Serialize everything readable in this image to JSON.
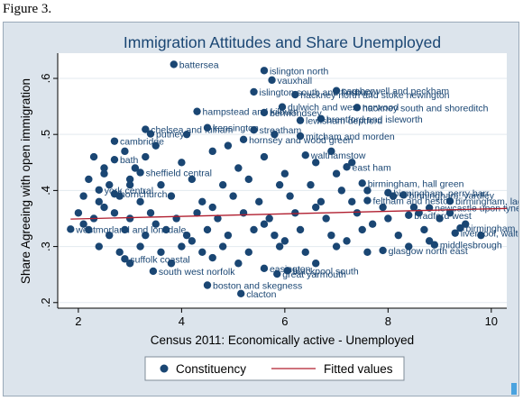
{
  "caption": "Figure 3.",
  "colors": {
    "marker": "#1a4673",
    "fit": "#b01e2f",
    "panel": "#dce4ec",
    "plot": "#ffffff"
  },
  "chart_data": {
    "type": "scatter",
    "title": "Immigration Attitudes and Share Unemployed",
    "xlabel": "Census 2011: Economically active - Unemployed",
    "ylabel": "Share Agreeing with open immigration",
    "xlim": [
      1.6,
      10.3
    ],
    "ylim": [
      0.19,
      0.645
    ],
    "xticks": [
      "2",
      "4",
      "6",
      "8",
      "10"
    ],
    "yticks": [
      ".2",
      ".3",
      ".4",
      ".5",
      ".6"
    ],
    "grid": true,
    "legend": {
      "position": "bottom",
      "entries": [
        "Constituency",
        "Fitted values"
      ]
    },
    "fitted_line": {
      "x": [
        1.85,
        10.3
      ],
      "y": [
        0.349,
        0.368
      ]
    },
    "labeled_points": [
      {
        "label": "battersea",
        "x": 3.85,
        "y": 0.625
      },
      {
        "label": "islington north",
        "x": 5.6,
        "y": 0.614
      },
      {
        "label": "vauxhall",
        "x": 5.75,
        "y": 0.597
      },
      {
        "label": "islington south and finsbury",
        "x": 5.4,
        "y": 0.576
      },
      {
        "label": "hackney north and stoke newington",
        "x": 6.2,
        "y": 0.571
      },
      {
        "label": "camberwell and peckham",
        "x": 7.0,
        "y": 0.578
      },
      {
        "label": "dulwich and west norwood",
        "x": 5.95,
        "y": 0.549
      },
      {
        "label": "hackney south and shoreditch",
        "x": 7.4,
        "y": 0.548
      },
      {
        "label": "hampstead and kilburn",
        "x": 4.3,
        "y": 0.541
      },
      {
        "label": "bermondsey",
        "x": 5.6,
        "y": 0.539
      },
      {
        "label": "lewisham deptford",
        "x": 6.3,
        "y": 0.525
      },
      {
        "label": "brentford and isleworth",
        "x": 6.7,
        "y": 0.528
      },
      {
        "label": "chelsea and fulham",
        "x": 3.3,
        "y": 0.509
      },
      {
        "label": "kensington",
        "x": 4.5,
        "y": 0.512
      },
      {
        "label": "streatham",
        "x": 5.4,
        "y": 0.508
      },
      {
        "label": "putney",
        "x": 3.4,
        "y": 0.501
      },
      {
        "label": "hornsey and wood green",
        "x": 5.2,
        "y": 0.491
      },
      {
        "label": "mitcham and morden",
        "x": 6.3,
        "y": 0.497
      },
      {
        "label": "cambridge",
        "x": 2.7,
        "y": 0.488
      },
      {
        "label": "walthamstow",
        "x": 6.4,
        "y": 0.463
      },
      {
        "label": "bath",
        "x": 2.7,
        "y": 0.455
      },
      {
        "label": "east ham",
        "x": 7.2,
        "y": 0.442
      },
      {
        "label": "sheffield central",
        "x": 3.2,
        "y": 0.432
      },
      {
        "label": "birmingham, hall green",
        "x": 7.5,
        "y": 0.413
      },
      {
        "label": "york central",
        "x": 2.4,
        "y": 0.401
      },
      {
        "label": "hornchurch",
        "x": 2.7,
        "y": 0.394
      },
      {
        "label": "birmingham, perry barr",
        "x": 8.0,
        "y": 0.396
      },
      {
        "label": "birmingham, yardley",
        "x": 8.3,
        "y": 0.392
      },
      {
        "label": "birmingham, ladywood",
        "x": 9.2,
        "y": 0.381
      },
      {
        "label": "feltham and heston",
        "x": 7.6,
        "y": 0.382
      },
      {
        "label": "newcastle upon tyne north east",
        "x": 8.8,
        "y": 0.369
      },
      {
        "label": "bradford west",
        "x": 8.4,
        "y": 0.356
      },
      {
        "label": "westmorland and lonsdale",
        "x": 1.85,
        "y": 0.331
      },
      {
        "label": "birmingham, hodge hill",
        "x": 9.4,
        "y": 0.333
      },
      {
        "label": "liverpool, walton",
        "x": 9.3,
        "y": 0.324
      },
      {
        "label": "middlesbrough",
        "x": 8.9,
        "y": 0.303
      },
      {
        "label": "glasgow north east",
        "x": 7.9,
        "y": 0.293
      },
      {
        "label": "suffolk coastal",
        "x": 2.9,
        "y": 0.278
      },
      {
        "label": "blackpool south",
        "x": 6.05,
        "y": 0.257
      },
      {
        "label": "easington",
        "x": 5.6,
        "y": 0.261
      },
      {
        "label": "great yarmouth",
        "x": 5.85,
        "y": 0.251
      },
      {
        "label": "south west norfolk",
        "x": 3.45,
        "y": 0.256
      },
      {
        "label": "boston and skegness",
        "x": 4.5,
        "y": 0.231
      },
      {
        "label": "clacton",
        "x": 5.15,
        "y": 0.216
      }
    ],
    "cloud_points": [
      {
        "x": 2.3,
        "y": 0.46
      },
      {
        "x": 2.5,
        "y": 0.43
      },
      {
        "x": 2.9,
        "y": 0.47
      },
      {
        "x": 3.1,
        "y": 0.44
      },
      {
        "x": 3.5,
        "y": 0.48
      },
      {
        "x": 4.0,
        "y": 0.45
      },
      {
        "x": 4.6,
        "y": 0.47
      },
      {
        "x": 5.1,
        "y": 0.44
      },
      {
        "x": 5.6,
        "y": 0.46
      },
      {
        "x": 6.0,
        "y": 0.43
      },
      {
        "x": 6.6,
        "y": 0.45
      },
      {
        "x": 7.0,
        "y": 0.43
      },
      {
        "x": 2.2,
        "y": 0.42
      },
      {
        "x": 2.6,
        "y": 0.41
      },
      {
        "x": 3.0,
        "y": 0.42
      },
      {
        "x": 3.6,
        "y": 0.41
      },
      {
        "x": 4.2,
        "y": 0.42
      },
      {
        "x": 4.8,
        "y": 0.41
      },
      {
        "x": 5.3,
        "y": 0.42
      },
      {
        "x": 5.9,
        "y": 0.41
      },
      {
        "x": 6.5,
        "y": 0.41
      },
      {
        "x": 7.1,
        "y": 0.4
      },
      {
        "x": 7.6,
        "y": 0.4
      },
      {
        "x": 8.1,
        "y": 0.39
      },
      {
        "x": 2.1,
        "y": 0.39
      },
      {
        "x": 2.4,
        "y": 0.38
      },
      {
        "x": 2.8,
        "y": 0.39
      },
      {
        "x": 3.2,
        "y": 0.38
      },
      {
        "x": 3.8,
        "y": 0.39
      },
      {
        "x": 4.4,
        "y": 0.38
      },
      {
        "x": 5.0,
        "y": 0.39
      },
      {
        "x": 5.5,
        "y": 0.38
      },
      {
        "x": 6.1,
        "y": 0.39
      },
      {
        "x": 6.7,
        "y": 0.38
      },
      {
        "x": 7.3,
        "y": 0.38
      },
      {
        "x": 7.9,
        "y": 0.37
      },
      {
        "x": 8.5,
        "y": 0.37
      },
      {
        "x": 2.0,
        "y": 0.36
      },
      {
        "x": 2.3,
        "y": 0.35
      },
      {
        "x": 2.7,
        "y": 0.36
      },
      {
        "x": 3.0,
        "y": 0.35
      },
      {
        "x": 3.4,
        "y": 0.36
      },
      {
        "x": 3.9,
        "y": 0.35
      },
      {
        "x": 4.3,
        "y": 0.36
      },
      {
        "x": 4.7,
        "y": 0.35
      },
      {
        "x": 5.2,
        "y": 0.36
      },
      {
        "x": 5.7,
        "y": 0.35
      },
      {
        "x": 6.2,
        "y": 0.36
      },
      {
        "x": 6.8,
        "y": 0.35
      },
      {
        "x": 7.4,
        "y": 0.36
      },
      {
        "x": 8.0,
        "y": 0.35
      },
      {
        "x": 8.6,
        "y": 0.36
      },
      {
        "x": 9.0,
        "y": 0.35
      },
      {
        "x": 9.5,
        "y": 0.34
      },
      {
        "x": 2.2,
        "y": 0.33
      },
      {
        "x": 2.6,
        "y": 0.32
      },
      {
        "x": 2.9,
        "y": 0.33
      },
      {
        "x": 3.3,
        "y": 0.32
      },
      {
        "x": 3.7,
        "y": 0.33
      },
      {
        "x": 4.1,
        "y": 0.32
      },
      {
        "x": 4.5,
        "y": 0.33
      },
      {
        "x": 4.9,
        "y": 0.32
      },
      {
        "x": 5.4,
        "y": 0.33
      },
      {
        "x": 5.8,
        "y": 0.32
      },
      {
        "x": 6.3,
        "y": 0.33
      },
      {
        "x": 6.9,
        "y": 0.32
      },
      {
        "x": 7.5,
        "y": 0.33
      },
      {
        "x": 8.2,
        "y": 0.32
      },
      {
        "x": 8.8,
        "y": 0.31
      },
      {
        "x": 9.8,
        "y": 0.32
      },
      {
        "x": 2.4,
        "y": 0.3
      },
      {
        "x": 2.8,
        "y": 0.29
      },
      {
        "x": 3.2,
        "y": 0.3
      },
      {
        "x": 3.6,
        "y": 0.29
      },
      {
        "x": 4.0,
        "y": 0.3
      },
      {
        "x": 4.4,
        "y": 0.29
      },
      {
        "x": 4.8,
        "y": 0.3
      },
      {
        "x": 5.3,
        "y": 0.29
      },
      {
        "x": 5.9,
        "y": 0.3
      },
      {
        "x": 6.4,
        "y": 0.29
      },
      {
        "x": 7.0,
        "y": 0.3
      },
      {
        "x": 7.6,
        "y": 0.29
      },
      {
        "x": 8.4,
        "y": 0.3
      },
      {
        "x": 3.0,
        "y": 0.27
      },
      {
        "x": 3.8,
        "y": 0.27
      },
      {
        "x": 4.6,
        "y": 0.28
      },
      {
        "x": 5.1,
        "y": 0.27
      },
      {
        "x": 6.6,
        "y": 0.27
      },
      {
        "x": 2.5,
        "y": 0.44
      },
      {
        "x": 3.3,
        "y": 0.46
      },
      {
        "x": 4.9,
        "y": 0.48
      },
      {
        "x": 5.8,
        "y": 0.5
      },
      {
        "x": 6.9,
        "y": 0.47
      },
      {
        "x": 7.3,
        "y": 0.45
      },
      {
        "x": 4.1,
        "y": 0.5
      },
      {
        "x": 3.0,
        "y": 0.41
      },
      {
        "x": 2.1,
        "y": 0.34
      },
      {
        "x": 2.5,
        "y": 0.37
      },
      {
        "x": 3.5,
        "y": 0.34
      },
      {
        "x": 4.6,
        "y": 0.37
      },
      {
        "x": 5.6,
        "y": 0.34
      },
      {
        "x": 6.6,
        "y": 0.37
      },
      {
        "x": 7.7,
        "y": 0.34
      },
      {
        "x": 8.7,
        "y": 0.33
      },
      {
        "x": 9.2,
        "y": 0.36
      },
      {
        "x": 7.2,
        "y": 0.31
      },
      {
        "x": 6.0,
        "y": 0.31
      },
      {
        "x": 4.2,
        "y": 0.31
      }
    ]
  }
}
